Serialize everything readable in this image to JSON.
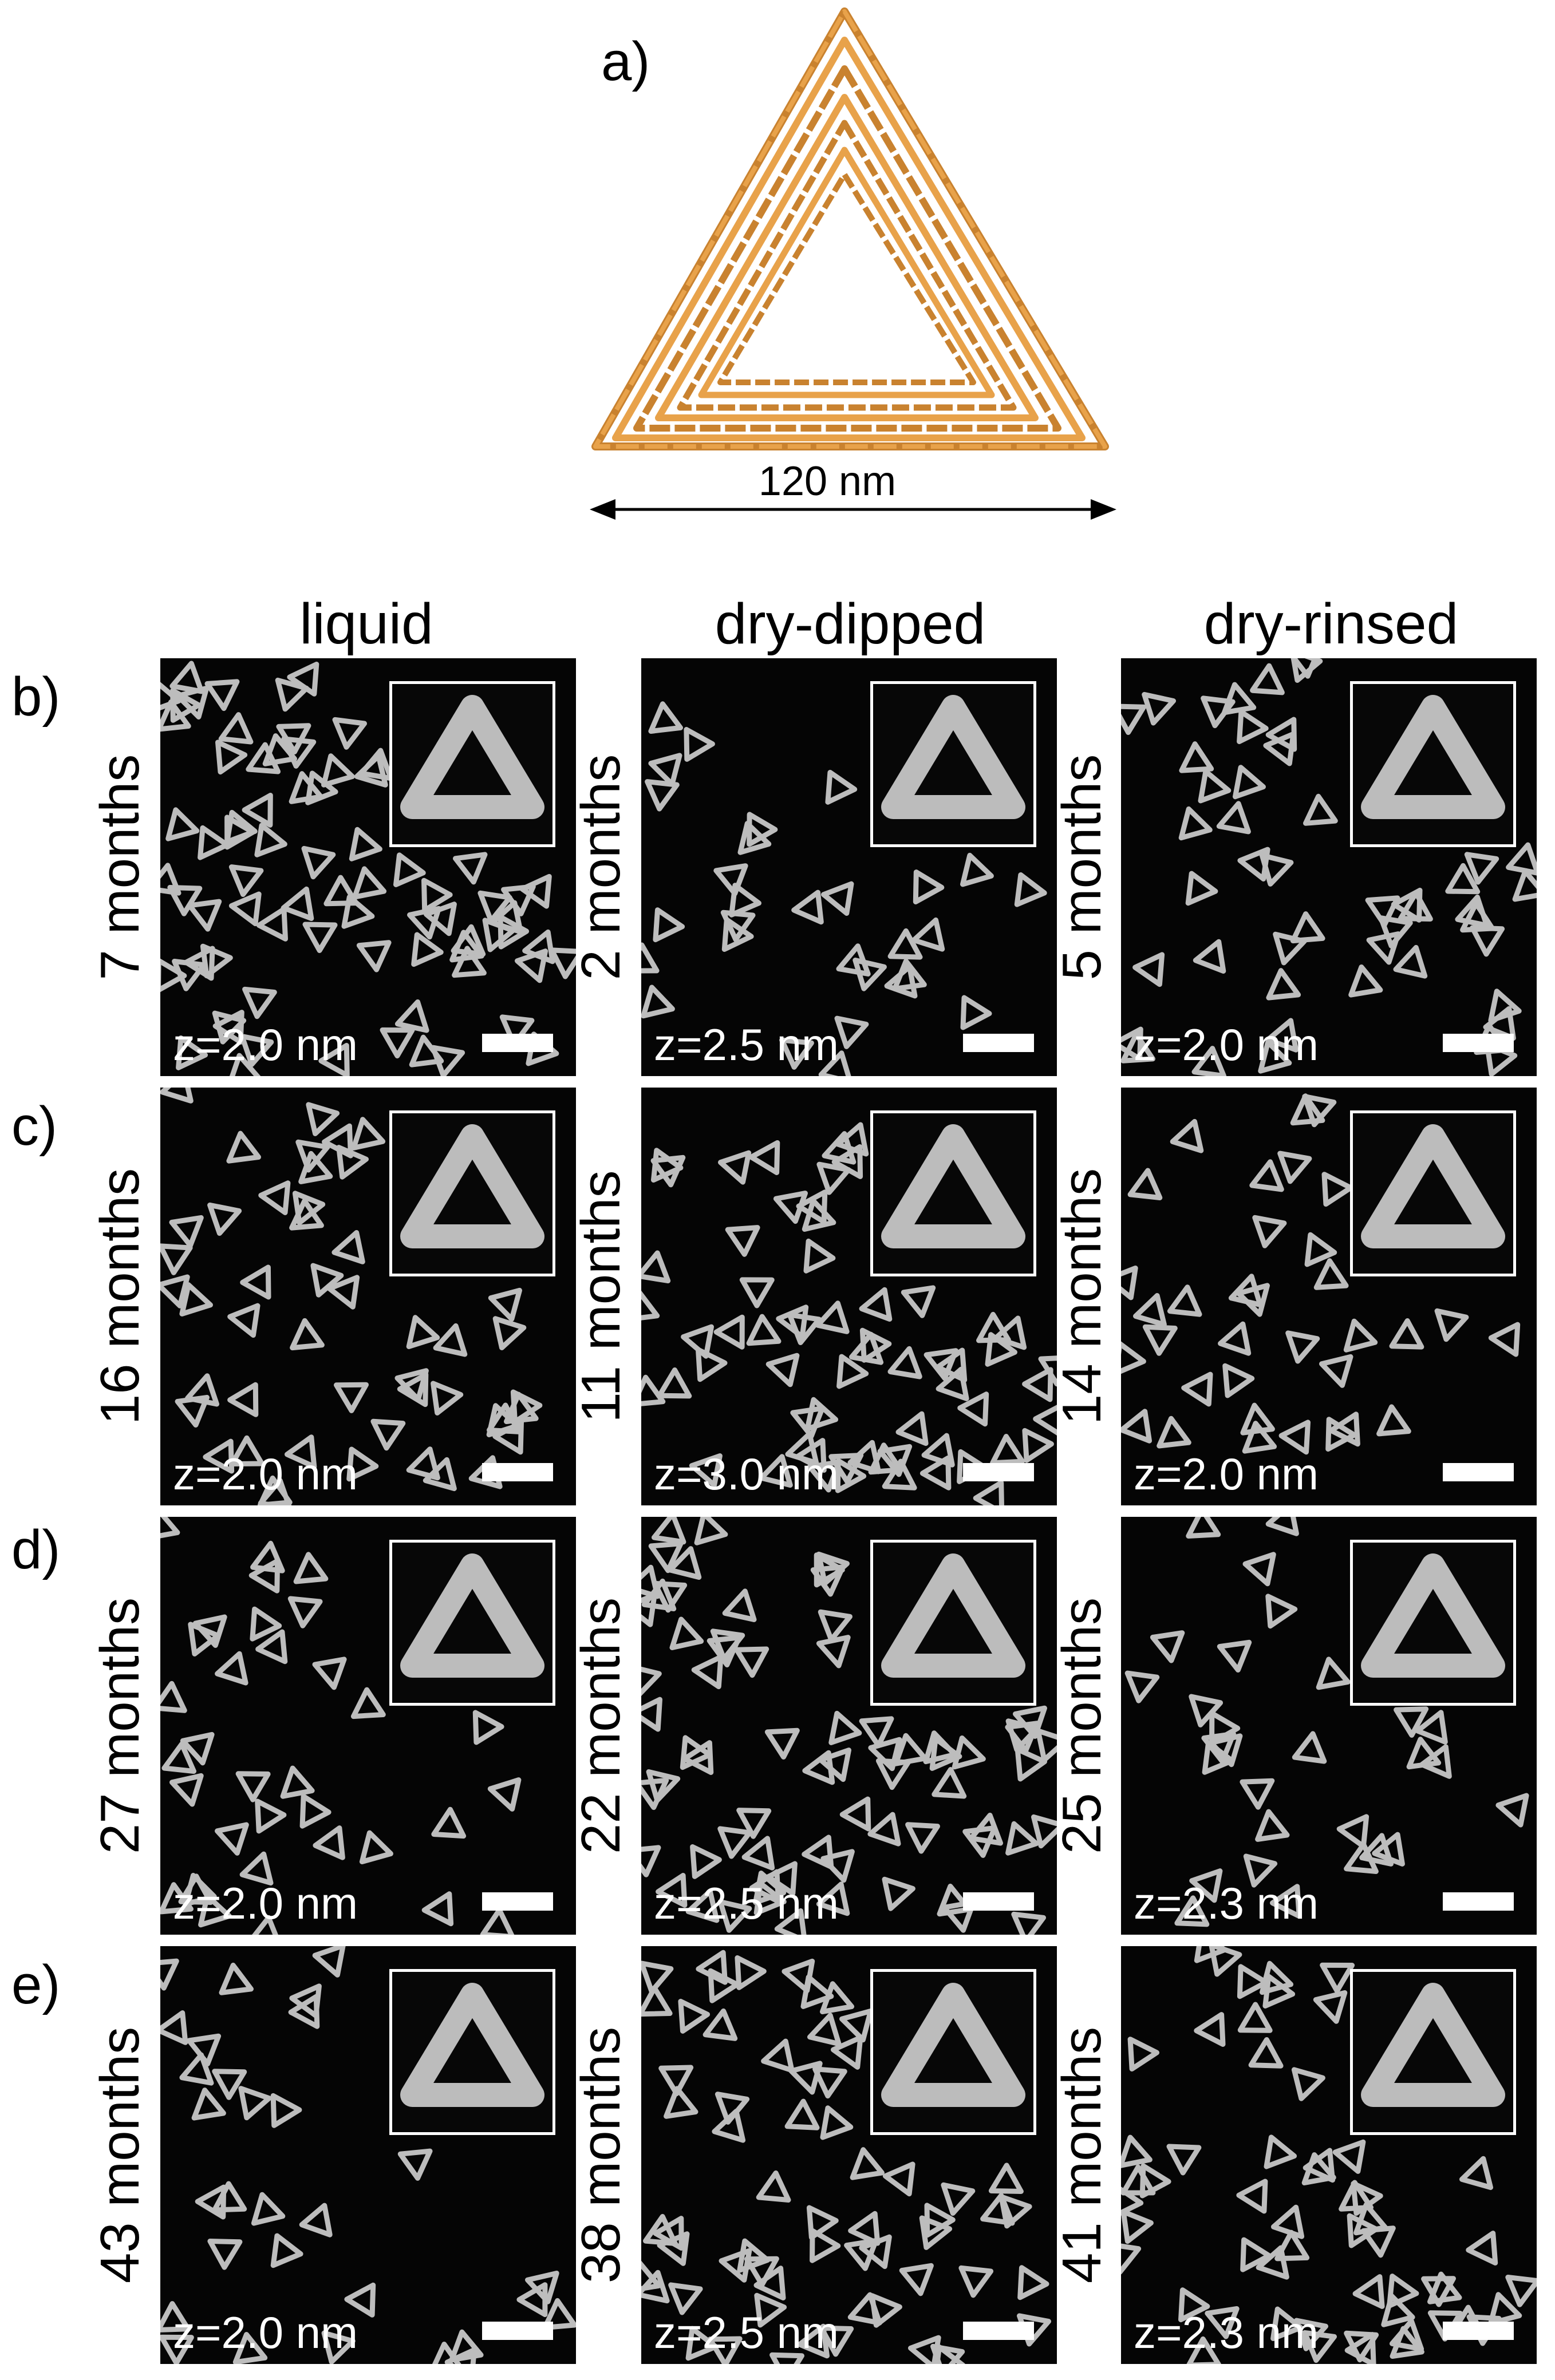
{
  "figure": {
    "part_a_label": "a)",
    "scale_label": "120 nm",
    "columns": [
      "liquid",
      "dry-dipped",
      "dry-rinsed"
    ],
    "rows": [
      {
        "label": "b)",
        "cells": [
          {
            "time": "7 months",
            "z": "z=2.0 nm"
          },
          {
            "time": "2 months",
            "z": "z=2.5 nm"
          },
          {
            "time": "5 months",
            "z": "z=2.0 nm"
          }
        ]
      },
      {
        "label": "c)",
        "cells": [
          {
            "time": "16 months",
            "z": "z=2.0 nm"
          },
          {
            "time": "11 months",
            "z": "z=3.0 nm"
          },
          {
            "time": "14 months",
            "z": "z=2.0 nm"
          }
        ]
      },
      {
        "label": "d)",
        "cells": [
          {
            "time": "27 months",
            "z": "z=2.0 nm"
          },
          {
            "time": "22 months",
            "z": "z=2.5 nm"
          },
          {
            "time": "25 months",
            "z": "z=2.3 nm"
          }
        ]
      },
      {
        "label": "e)",
        "cells": [
          {
            "time": "43 months",
            "z": "z=2.0 nm"
          },
          {
            "time": "38 months",
            "z": "z=2.5 nm"
          },
          {
            "time": "41 months",
            "z": "z=2.3 nm"
          }
        ]
      }
    ],
    "colors": {
      "origami": "#e8a24a",
      "origami_dark": "#c9822f",
      "afm_bg": "#050505",
      "afm_feature": "#bdbdbd",
      "overlay": "#ffffff"
    }
  }
}
